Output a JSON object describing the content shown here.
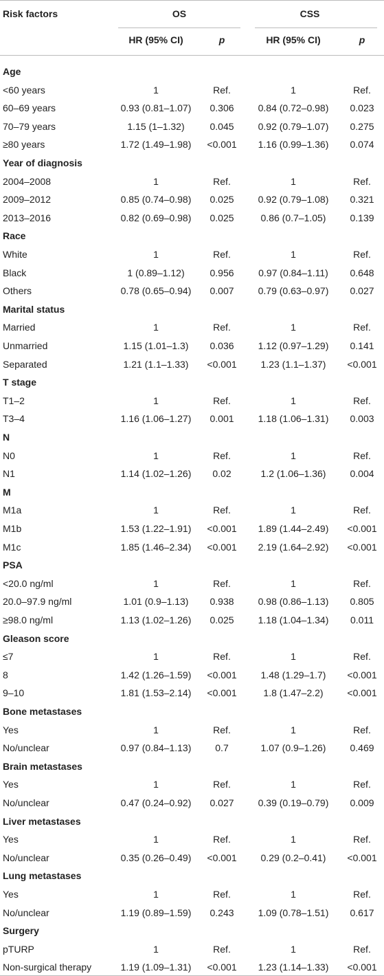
{
  "header": {
    "risk_factors": "Risk factors",
    "os": "OS",
    "css": "CSS",
    "hr_os": "HR (95% CI)",
    "p_os": "p",
    "hr_css": "HR (95% CI)",
    "p_css": "p"
  },
  "groups": [
    {
      "title": "Age",
      "rows": [
        [
          "<60 years",
          "1",
          "Ref.",
          "1",
          "Ref."
        ],
        [
          "60–69 years",
          "0.93 (0.81–1.07)",
          "0.306",
          "0.84 (0.72–0.98)",
          "0.023"
        ],
        [
          "70–79 years",
          "1.15 (1–1.32)",
          "0.045",
          "0.92 (0.79–1.07)",
          "0.275"
        ],
        [
          "≥80 years",
          "1.72 (1.49–1.98)",
          "<0.001",
          "1.16 (0.99–1.36)",
          "0.074"
        ]
      ]
    },
    {
      "title": "Year of diagnosis",
      "rows": [
        [
          "2004–2008",
          "1",
          "Ref.",
          "1",
          "Ref."
        ],
        [
          "2009–2012",
          "0.85 (0.74–0.98)",
          "0.025",
          "0.92 (0.79–1.08)",
          "0.321"
        ],
        [
          "2013–2016",
          "0.82 (0.69–0.98)",
          "0.025",
          "0.86 (0.7–1.05)",
          "0.139"
        ]
      ]
    },
    {
      "title": "Race",
      "rows": [
        [
          "White",
          "1",
          "Ref.",
          "1",
          "Ref."
        ],
        [
          "Black",
          "1 (0.89–1.12)",
          "0.956",
          "0.97 (0.84–1.11)",
          "0.648"
        ],
        [
          "Others",
          "0.78 (0.65–0.94)",
          "0.007",
          "0.79 (0.63–0.97)",
          "0.027"
        ]
      ]
    },
    {
      "title": "Marital status",
      "rows": [
        [
          "Married",
          "1",
          "Ref.",
          "1",
          "Ref."
        ],
        [
          "Unmarried",
          "1.15 (1.01–1.3)",
          "0.036",
          "1.12 (0.97–1.29)",
          "0.141"
        ],
        [
          "Separated",
          "1.21 (1.1–1.33)",
          "<0.001",
          "1.23 (1.1–1.37)",
          "<0.001"
        ]
      ]
    },
    {
      "title": "T stage",
      "rows": [
        [
          "T1–2",
          "1",
          "Ref.",
          "1",
          "Ref."
        ],
        [
          "T3–4",
          "1.16 (1.06–1.27)",
          "0.001",
          "1.18 (1.06–1.31)",
          "0.003"
        ]
      ]
    },
    {
      "title": "N",
      "rows": [
        [
          "N0",
          "1",
          "Ref.",
          "1",
          "Ref."
        ],
        [
          "N1",
          "1.14 (1.02–1.26)",
          "0.02",
          "1.2 (1.06–1.36)",
          "0.004"
        ]
      ]
    },
    {
      "title": "M",
      "rows": [
        [
          "M1a",
          "1",
          "Ref.",
          "1",
          "Ref."
        ],
        [
          "M1b",
          "1.53 (1.22–1.91)",
          "<0.001",
          "1.89 (1.44–2.49)",
          "<0.001"
        ],
        [
          "M1c",
          "1.85 (1.46–2.34)",
          "<0.001",
          "2.19 (1.64–2.92)",
          "<0.001"
        ]
      ]
    },
    {
      "title": "PSA",
      "rows": [
        [
          "<20.0 ng/ml",
          "1",
          "Ref.",
          "1",
          "Ref."
        ],
        [
          "20.0–97.9 ng/ml",
          "1.01 (0.9–1.13)",
          "0.938",
          "0.98 (0.86–1.13)",
          "0.805"
        ],
        [
          "≥98.0 ng/ml",
          "1.13 (1.02–1.26)",
          "0.025",
          "1.18 (1.04–1.34)",
          "0.011"
        ]
      ]
    },
    {
      "title": "Gleason score",
      "rows": [
        [
          "≤7",
          "1",
          "Ref.",
          "1",
          "Ref."
        ],
        [
          "8",
          "1.42 (1.26–1.59)",
          "<0.001",
          "1.48 (1.29–1.7)",
          "<0.001"
        ],
        [
          "9–10",
          "1.81 (1.53–2.14)",
          "<0.001",
          "1.8 (1.47–2.2)",
          "<0.001"
        ]
      ]
    },
    {
      "title": "Bone metastases",
      "rows": [
        [
          "Yes",
          "1",
          "Ref.",
          "1",
          "Ref."
        ],
        [
          "No/unclear",
          "0.97 (0.84–1.13)",
          "0.7",
          "1.07 (0.9–1.26)",
          "0.469"
        ]
      ]
    },
    {
      "title": "Brain metastases",
      "rows": [
        [
          "Yes",
          "1",
          "Ref.",
          "1",
          "Ref."
        ],
        [
          "No/unclear",
          "0.47 (0.24–0.92)",
          "0.027",
          "0.39 (0.19–0.79)",
          "0.009"
        ]
      ]
    },
    {
      "title": "Liver metastases",
      "rows": [
        [
          "Yes",
          "1",
          "Ref.",
          "1",
          "Ref."
        ],
        [
          "No/unclear",
          "0.35 (0.26–0.49)",
          "<0.001",
          "0.29 (0.2–0.41)",
          "<0.001"
        ]
      ]
    },
    {
      "title": "Lung metastases",
      "rows": [
        [
          "Yes",
          "1",
          "Ref.",
          "1",
          "Ref."
        ],
        [
          "No/unclear",
          "1.19 (0.89–1.59)",
          "0.243",
          "1.09 (0.78–1.51)",
          "0.617"
        ]
      ]
    },
    {
      "title": "Surgery",
      "rows": [
        [
          "pTURP",
          "1",
          "Ref.",
          "1",
          "Ref."
        ],
        [
          "Non-surgical therapy",
          "1.19 (1.09–1.31)",
          "<0.001",
          "1.23 (1.14–1.33)",
          "<0.001"
        ]
      ]
    }
  ]
}
